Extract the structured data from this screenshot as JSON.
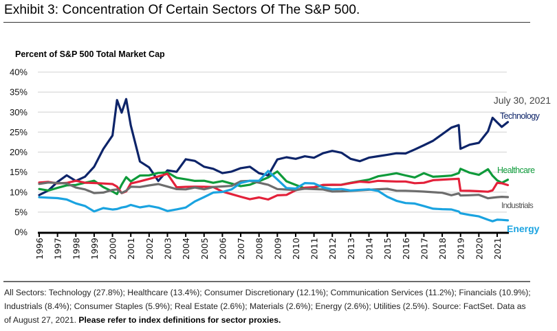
{
  "title": "Exhibit 3: Concentration Of Certain Sectors Of The S&P 500.",
  "footnote": {
    "text": "All Sectors: Technology (27.8%); Healthcare (13.4%); Consumer Discretionary (12.1%); Communication Services (11.2%); Financials (10.9%); Industrials (8.4%); Consumer Staples (5.9%); Real Estate (2.6%); Materials (2.6%); Energy (2.6%); Utilities (2.5%). Source: FactSet. Data as of August 27, 2021. ",
    "bold": "Please refer to index definitions for sector proxies."
  },
  "chart_data": {
    "type": "line",
    "title": "Percent of S&P 500 Total Market Cap",
    "xlabel": "",
    "ylabel": "Percent of S&P 500 Total Market Cap",
    "ylim": [
      0,
      40
    ],
    "xlim": [
      1996,
      2021.6
    ],
    "yticks": [
      "0%",
      "5%",
      "10%",
      "15%",
      "20%",
      "25%",
      "30%",
      "35%",
      "40%"
    ],
    "xticks": [
      "1996",
      "1997",
      "1998",
      "1999",
      "2000",
      "2001",
      "2002",
      "2003",
      "2004",
      "2005",
      "2006",
      "2007",
      "2008",
      "2009",
      "2010",
      "2011",
      "2012",
      "2013",
      "2014",
      "2015",
      "2016",
      "2017",
      "2018",
      "2019",
      "2020",
      "2021"
    ],
    "grid": true,
    "annotation": "July 30, 2021",
    "legend_placement": "inline-right",
    "x": [
      1996,
      1996.5,
      1997,
      1997.5,
      1998,
      1998.5,
      1999,
      1999.5,
      2000,
      2000.25,
      2000.5,
      2000.75,
      2001,
      2001.5,
      2002,
      2002.5,
      2003,
      2003.5,
      2004,
      2004.5,
      2005,
      2005.5,
      2006,
      2006.5,
      2007,
      2007.5,
      2008,
      2008.5,
      2009,
      2009.5,
      2010,
      2010.5,
      2011,
      2011.5,
      2012,
      2012.5,
      2013,
      2013.5,
      2014,
      2014.5,
      2015,
      2015.5,
      2016,
      2016.5,
      2017,
      2017.5,
      2018,
      2018.5,
      2018.9,
      2019,
      2019.5,
      2020,
      2020.5,
      2020.75,
      2021,
      2021.25,
      2021.58
    ],
    "series": [
      {
        "name": "Technology",
        "color": "#0d2469",
        "label_color": "#0d2469",
        "values": [
          9.5,
          10.5,
          12.5,
          14,
          12.5,
          13.5,
          16,
          20.5,
          24,
          33,
          30,
          33.5,
          27,
          18,
          16.5,
          13,
          15.5,
          15,
          18,
          17.5,
          16,
          15.5,
          14.5,
          15,
          16,
          16.5,
          15,
          14.5,
          18.5,
          19,
          18.5,
          19,
          18.5,
          19.5,
          20,
          19.5,
          18,
          17.5,
          18.5,
          19,
          19.5,
          20,
          20,
          21,
          22,
          23,
          24.5,
          26,
          26.5,
          20.5,
          21.5,
          22,
          25,
          28.5,
          27.5,
          26.5,
          27.8
        ]
      },
      {
        "name": "Healthcare",
        "color": "#0e9a3a",
        "label_color": "#0e9a3a",
        "values": [
          11,
          10.5,
          11,
          11.5,
          11.5,
          12,
          12.5,
          11,
          10,
          9.5,
          12,
          14,
          13,
          14.5,
          14.5,
          15,
          15,
          13.5,
          13,
          12.5,
          12.5,
          12,
          12.5,
          12,
          11.5,
          12,
          13,
          14,
          15.5,
          13,
          12,
          11,
          11,
          11.5,
          11.5,
          11.5,
          12,
          12.5,
          13,
          14,
          14.5,
          15,
          14.5,
          14,
          15,
          14,
          14,
          14,
          14.5,
          15.5,
          14.5,
          14,
          15.5,
          14,
          13,
          12.5,
          13.4
        ]
      },
      {
        "name": "Consumer Discretionary",
        "color": "#e3213a",
        "label_color": "#e3213a",
        "values": [
          12.5,
          12.5,
          12,
          12,
          12.5,
          12,
          12,
          12,
          12,
          11.5,
          10,
          10.5,
          12.5,
          13,
          13.5,
          14,
          14.5,
          11,
          11,
          11,
          11,
          11,
          10,
          9.5,
          9,
          8.5,
          9,
          8.5,
          9.5,
          9.5,
          10.5,
          11,
          11,
          11.5,
          11.5,
          11.5,
          12,
          12.5,
          12.5,
          13,
          13,
          13,
          13,
          12.5,
          12.5,
          13,
          13,
          13,
          13,
          10,
          10,
          10,
          10,
          10.5,
          12.5,
          12.5,
          12.1
        ]
      },
      {
        "name": "Industrials",
        "color": "#6d6d6d",
        "label_color": "#555555",
        "values": [
          12,
          12.5,
          12.5,
          12.5,
          11.5,
          11,
          10,
          10,
          10.5,
          10.5,
          9.5,
          10,
          11,
          11,
          11.5,
          12,
          11.5,
          11,
          11,
          11.5,
          11,
          11.5,
          11.5,
          11.5,
          12.5,
          12.5,
          12,
          11.5,
          10.5,
          10.5,
          10.5,
          11,
          11,
          11,
          10.5,
          10.5,
          10.5,
          10.5,
          10.5,
          10.5,
          10.5,
          10,
          10,
          10,
          10,
          10,
          10,
          9.5,
          10,
          9.5,
          9.5,
          9.5,
          8.5,
          8.5,
          8.5,
          8.5,
          8.4
        ]
      },
      {
        "name": "Energy",
        "color": "#1aa3e0",
        "label_color": "#1aa3e0",
        "values": [
          8.8,
          8.8,
          8.8,
          8.5,
          7.5,
          6.8,
          5.3,
          6,
          5.5,
          5.5,
          5.8,
          6,
          6.5,
          6,
          6.5,
          6.2,
          5.5,
          6,
          6.5,
          8,
          9,
          10,
          10,
          10.5,
          12,
          12.5,
          12.5,
          15,
          13,
          11,
          11,
          12.5,
          12.5,
          11.5,
          11,
          11,
          10.5,
          10.5,
          10.5,
          10,
          8.5,
          7.5,
          7,
          7,
          6.5,
          6,
          6,
          6,
          5.5,
          5,
          4.5,
          4,
          3,
          2.5,
          2.8,
          2.7,
          2.6
        ]
      }
    ]
  }
}
